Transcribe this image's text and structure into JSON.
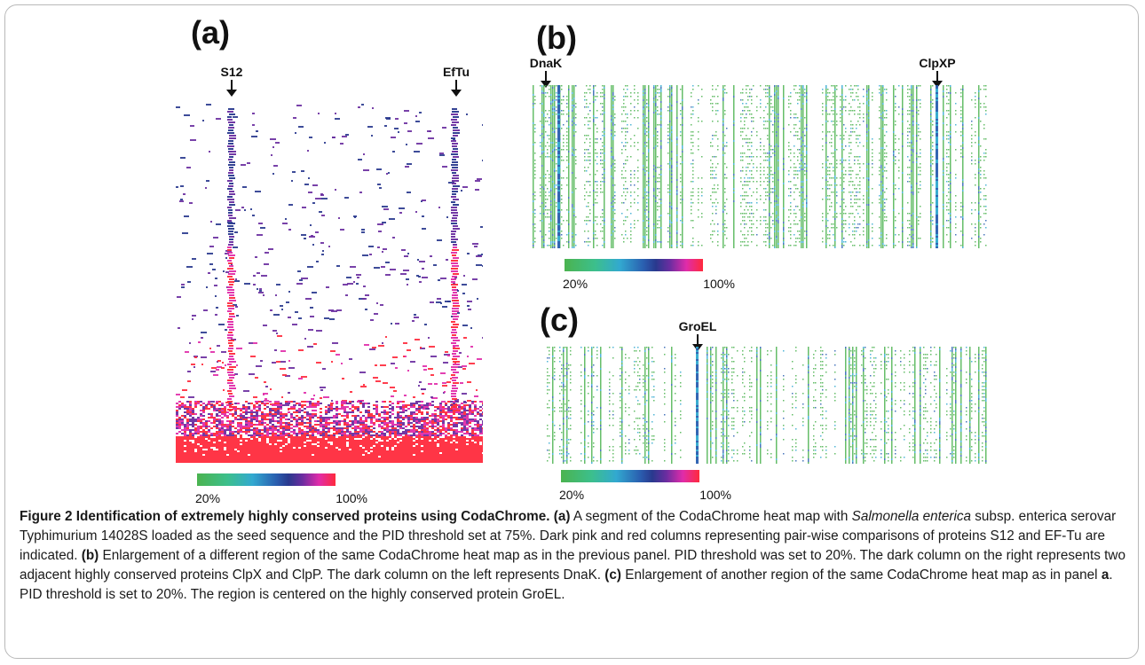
{
  "panels": {
    "a": {
      "letter": "(a)",
      "markers": [
        {
          "label": "S12"
        },
        {
          "label": "EfTu"
        }
      ],
      "scale": {
        "low": "20%",
        "high": "100%"
      }
    },
    "b": {
      "letter": "(b)",
      "markers": [
        {
          "label": "DnaK"
        },
        {
          "label": "ClpXP"
        }
      ],
      "scale": {
        "low": "20%",
        "high": "100%"
      }
    },
    "c": {
      "letter": "(c)",
      "markers": [
        {
          "label": "GroEL"
        }
      ],
      "scale": {
        "low": "20%",
        "high": "100%"
      }
    }
  },
  "scale_colors": [
    "#4bb34f",
    "#3cbf8c",
    "#32a9d0",
    "#2a5fb0",
    "#29398e",
    "#6a2da0",
    "#e02caa",
    "#ff2a3c"
  ],
  "caption": {
    "figure_label": "Figure 2 Identification of extremely highly conserved proteins using CodaChrome.",
    "a_tag": "(a)",
    "a_text_1": "A segment of the CodaChrome heat map with",
    "a_species": "Salmonella enterica",
    "a_text_2": "subsp. enterica serovar Typhimurium 14028S loaded as the seed sequence and the PID threshold set at 75%. Dark pink and red columns representing pair-wise comparisons of proteins S12 and EF-Tu are indicated.",
    "b_tag": "(b)",
    "b_text": "Enlargement of a different region of the same CodaChrome heat map as in the previous panel. PID threshold was set to 20%. The dark column on the right represents two adjacent highly conserved proteins ClpX and ClpP. The dark column on the left represents DnaK.",
    "c_tag": "(c)",
    "c_text_1": "Enlargement of another region of the same CodaChrome heat map as in panel",
    "c_panel_ref": "a",
    "c_text_2": ". PID threshold is set to 20%. The region is centered on the highly conserved protein GroEL."
  }
}
